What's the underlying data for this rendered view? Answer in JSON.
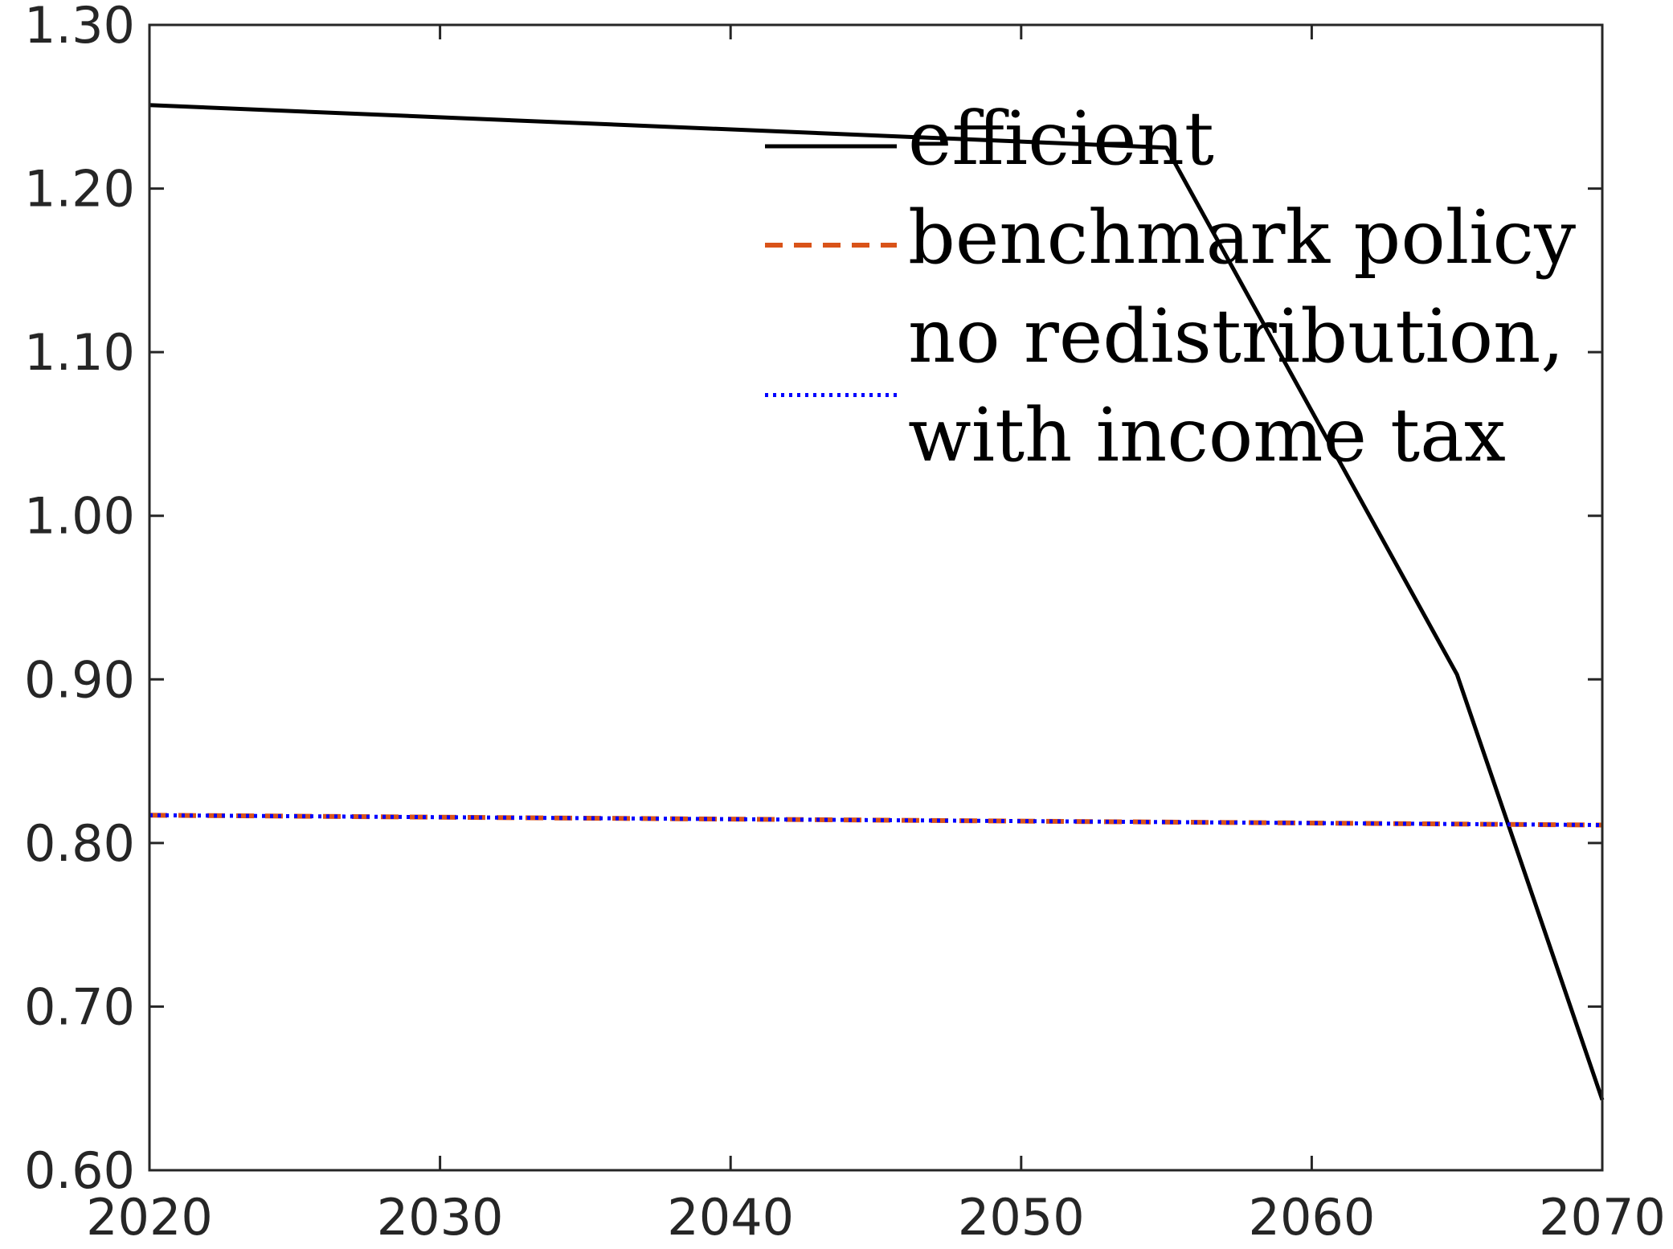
{
  "chart_data": {
    "type": "line",
    "title": "",
    "xlabel": "",
    "ylabel": "",
    "xlim": [
      2020,
      2070
    ],
    "ylim": [
      0.6,
      1.3
    ],
    "x_ticks": [
      2020,
      2030,
      2040,
      2050,
      2060,
      2070
    ],
    "y_ticks": [
      0.6,
      0.7,
      0.8,
      0.9,
      1.0,
      1.1,
      1.2,
      1.3
    ],
    "x_tick_labels": [
      "2020",
      "2030",
      "2040",
      "2050",
      "2060",
      "2070"
    ],
    "y_tick_labels": [
      "0.60",
      "0.70",
      "0.80",
      "0.90",
      "1.00",
      "1.10",
      "1.20",
      "1.30"
    ],
    "grid": false,
    "legend_position": "top-right",
    "series": [
      {
        "name": "efficient",
        "color": "#000000",
        "style": "solid",
        "x": [
          2020,
          2055,
          2065,
          2070
        ],
        "y": [
          1.251,
          1.225,
          0.903,
          0.643
        ]
      },
      {
        "name": "benchmark policy",
        "color": "#D95319",
        "style": "dashed",
        "x": [
          2020,
          2070
        ],
        "y": [
          0.817,
          0.811
        ]
      },
      {
        "name": "no redistribution,\nwith income tax",
        "color": "#0000FF",
        "style": "dotted",
        "x": [
          2020,
          2070
        ],
        "y": [
          0.817,
          0.811
        ]
      }
    ]
  }
}
